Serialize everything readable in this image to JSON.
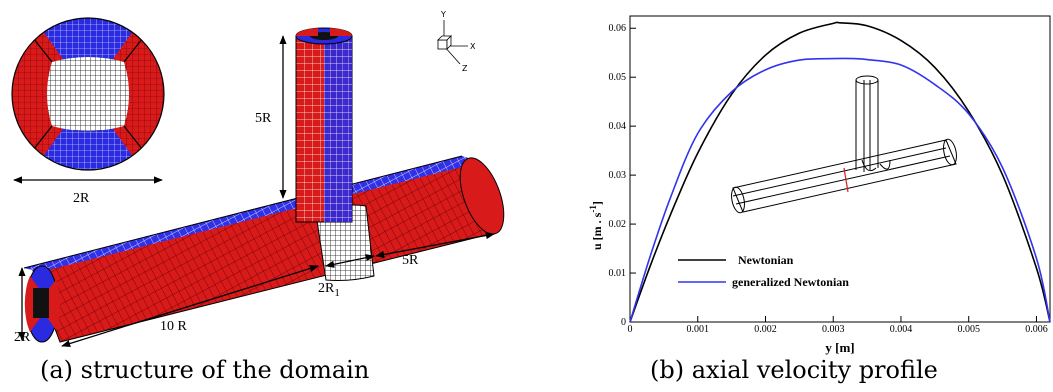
{
  "figure_a": {
    "caption": "(a) structure of the domain",
    "dims": {
      "cross_section_diameter": "2R",
      "branch_length": "5R",
      "inlet_diameter": "2R",
      "main_length": "10 R",
      "junction_width": "2R",
      "junction_width_sub": "1",
      "outlet_length": "5R"
    },
    "axes_triad": {
      "y": "Y",
      "x": "X",
      "z": "Z"
    },
    "colors": {
      "red_block": "#cc1111",
      "blue_block": "#2222dd",
      "core_block": "#111111"
    }
  },
  "figure_b": {
    "caption": "(b) axial velocity profile"
  },
  "chart_data": {
    "type": "line",
    "xlabel": "y [m]",
    "ylabel_main": "u [m . s",
    "ylabel_sup": "-1",
    "ylabel_end": "]",
    "xlim": [
      0,
      0.0062
    ],
    "ylim": [
      0,
      0.0625
    ],
    "xticks": [
      0,
      0.001,
      0.002,
      0.003,
      0.004,
      0.005,
      0.006
    ],
    "xtick_labels": [
      "0",
      "0.001",
      "0.002",
      "0.003",
      "0.004",
      "0.005",
      "0.006"
    ],
    "yticks": [
      0,
      0.01,
      0.02,
      0.03,
      0.04,
      0.05,
      0.06
    ],
    "ytick_labels": [
      "0",
      "0.01",
      "0.02",
      "0.03",
      "0.04",
      "0.05",
      "0.06"
    ],
    "legend_position": "lower-left",
    "series": [
      {
        "name": "Newtonian",
        "color": "#000000",
        "x": [
          0,
          0.0003,
          0.0006,
          0.001,
          0.0015,
          0.002,
          0.0025,
          0.003,
          0.0031,
          0.0035,
          0.004,
          0.0045,
          0.005,
          0.0055,
          0.006,
          0.0062
        ],
        "y": [
          0,
          0.0115,
          0.022,
          0.0345,
          0.0465,
          0.0545,
          0.059,
          0.061,
          0.0611,
          0.0605,
          0.0575,
          0.052,
          0.043,
          0.03,
          0.011,
          0
        ]
      },
      {
        "name": "generalized Newtonian",
        "color": "#3333ee",
        "x": [
          0,
          0.0003,
          0.0006,
          0.001,
          0.0015,
          0.002,
          0.0025,
          0.003,
          0.0033,
          0.0035,
          0.004,
          0.0045,
          0.005,
          0.0055,
          0.006,
          0.0062
        ],
        "y": [
          0,
          0.0135,
          0.0255,
          0.0385,
          0.047,
          0.0515,
          0.0535,
          0.0538,
          0.0538,
          0.0536,
          0.0525,
          0.0485,
          0.0425,
          0.0315,
          0.013,
          0
        ]
      }
    ]
  }
}
